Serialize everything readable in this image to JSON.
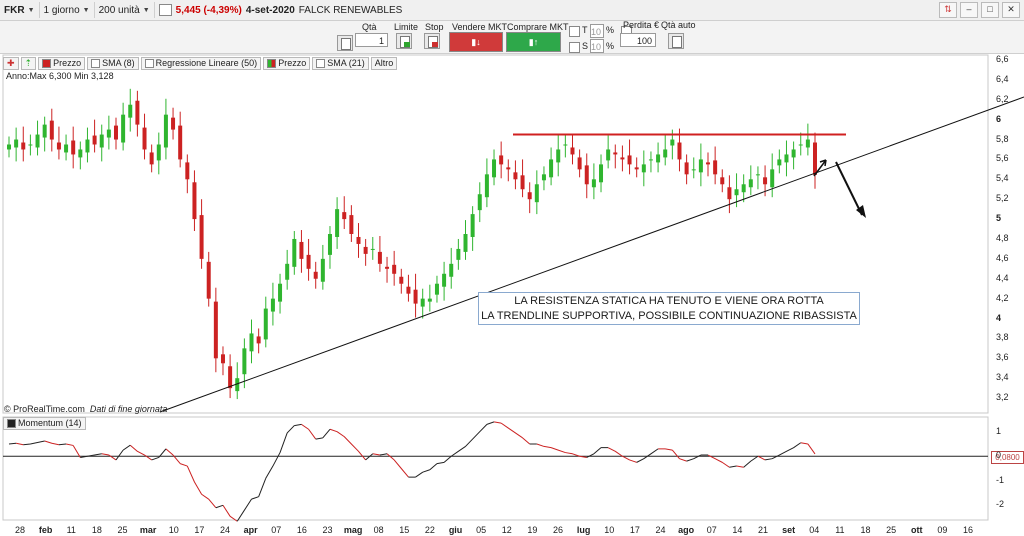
{
  "toolbar": {
    "ticker": "FKR",
    "timeframe": "1 giorno",
    "units": "200 unità",
    "price": "5,445 (-4,39%)",
    "date": "4-set-2020",
    "name": "FALCK RENEWABLES"
  },
  "order_bar": {
    "qty_label": "Qtà",
    "qty_value": "1",
    "limit_label": "Limite",
    "stop_label": "Stop",
    "sell_label": "Vendere MKT",
    "buy_label": "Comprare MKT",
    "t_label": "T",
    "s_label": "S",
    "t_value": "10",
    "s_value": "10",
    "pct": "%",
    "loss_label": "Perdita €",
    "loss_value": "100",
    "auto_label": "Qtà auto"
  },
  "legend": {
    "prezzo": "Prezzo",
    "sma8": "SMA (8)",
    "reg": "Regressione Lineare (50)",
    "prezzo2": "Prezzo",
    "sma21": "SMA (21)",
    "altro": "Altro",
    "info": "Anno:Max 6,300 Min 3,128"
  },
  "annotation": {
    "line1": "LA RESISTENZA STATICA HA TENUTO E VIENE ORA ROTTA",
    "line2": "LA TRENDLINE SUPPORTIVA, POSSIBILE CONTINUAZIONE RIBASSISTA"
  },
  "footer": {
    "source": "© ProRealTime.com",
    "note": "Dati di fine giornata",
    "momentum": "Momentum (14)",
    "momentum_value": "0,0800"
  },
  "colors": {
    "up": "#2fb52f",
    "down": "#cc2222",
    "resistance": "#d02020"
  },
  "chart_data": {
    "type": "candlestick",
    "ylim": [
      3.05,
      6.65
    ],
    "y_ticks": [
      "6,6",
      "6,4",
      "6,2",
      "6",
      "5,8",
      "5,6",
      "5,4",
      "5,2",
      "5",
      "4,8",
      "4,6",
      "4,4",
      "4,2",
      "4",
      "3,8",
      "3,6",
      "3,4",
      "3,2"
    ],
    "bold_y_ticks": [
      "6",
      "5",
      "4"
    ],
    "momentum_ticks": [
      "1",
      "0",
      "-1",
      "-2"
    ],
    "x_labels": [
      "28",
      "feb",
      "11",
      "18",
      "25",
      "mar",
      "10",
      "17",
      "24",
      "apr",
      "07",
      "16",
      "23",
      "mag",
      "08",
      "15",
      "22",
      "giu",
      "05",
      "12",
      "19",
      "26",
      "lug",
      "10",
      "17",
      "24",
      "ago",
      "07",
      "14",
      "21",
      "set",
      "04",
      "11",
      "18",
      "25",
      "ott",
      "09",
      "16"
    ],
    "bold_x_labels": [
      "feb",
      "mar",
      "apr",
      "mag",
      "giu",
      "lug",
      "ago",
      "set",
      "ott"
    ],
    "close": [
      5.75,
      5.8,
      5.7,
      5.75,
      5.85,
      5.95,
      5.8,
      5.7,
      5.75,
      5.65,
      5.7,
      5.8,
      5.75,
      5.85,
      5.9,
      5.8,
      6.05,
      6.15,
      5.95,
      5.7,
      5.55,
      5.75,
      6.05,
      5.9,
      5.6,
      5.4,
      5.0,
      4.6,
      4.2,
      3.6,
      3.55,
      3.3,
      3.4,
      3.7,
      3.85,
      3.75,
      4.1,
      4.2,
      4.35,
      4.55,
      4.8,
      4.6,
      4.5,
      4.4,
      4.6,
      4.85,
      5.1,
      5.0,
      4.85,
      4.75,
      4.65,
      4.7,
      4.55,
      4.5,
      4.45,
      4.35,
      4.25,
      4.15,
      4.2,
      4.2,
      4.35,
      4.45,
      4.55,
      4.7,
      4.85,
      5.05,
      5.25,
      5.45,
      5.6,
      5.55,
      5.5,
      5.4,
      5.3,
      5.2,
      5.35,
      5.45,
      5.6,
      5.7,
      5.75,
      5.65,
      5.5,
      5.35,
      5.4,
      5.55,
      5.7,
      5.65,
      5.6,
      5.55,
      5.5,
      5.55,
      5.6,
      5.65,
      5.7,
      5.8,
      5.6,
      5.45,
      5.5,
      5.6,
      5.55,
      5.45,
      5.35,
      5.2,
      5.3,
      5.35,
      5.4,
      5.45,
      5.35,
      5.5,
      5.6,
      5.65,
      5.7,
      5.75,
      5.8,
      5.445
    ],
    "resistance_level": 5.85,
    "momentum_ylim": [
      -2.6,
      1.6
    ]
  }
}
